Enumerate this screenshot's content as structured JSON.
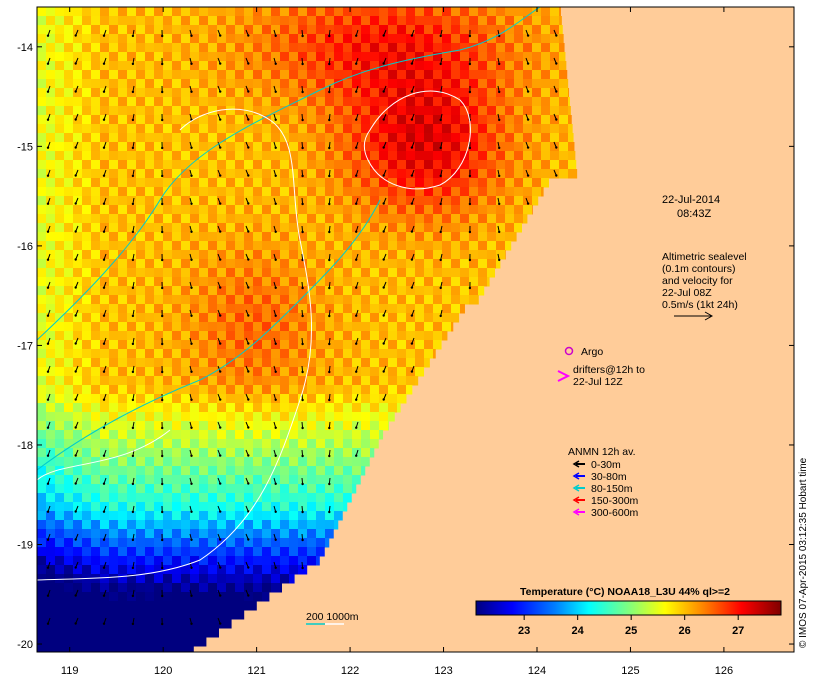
{
  "map": {
    "lon_ticks": [
      "119",
      "120",
      "121",
      "122",
      "123",
      "124",
      "125",
      "126"
    ],
    "lat_ticks": [
      "-14",
      "-15",
      "-16",
      "-17",
      "-18",
      "-19",
      "-20"
    ],
    "lon_range": [
      118.65,
      126.75
    ],
    "lat_range": [
      -20.08,
      -13.6
    ]
  },
  "timestamp": {
    "date": "22-Jul-2014",
    "time": "08:43Z"
  },
  "altimetry": {
    "lines": [
      "Altimetric sealevel",
      "(0.1m contours)",
      "and velocity for",
      "22-Jul 08Z",
      "0.5m/s (1kt 24h)"
    ]
  },
  "argo": {
    "label": "Argo",
    "color": "#cc00cc"
  },
  "drifters": {
    "lines": [
      "drifters@12h to",
      "22-Jul 12Z"
    ],
    "color": "#ff00ff"
  },
  "anmn": {
    "title": "ANMN 12h av.",
    "items": [
      {
        "label": "0-30m",
        "color": "#000000"
      },
      {
        "label": "30-80m",
        "color": "#0000ff"
      },
      {
        "label": "80-150m",
        "color": "#00cccc"
      },
      {
        "label": "150-300m",
        "color": "#ff0000"
      },
      {
        "label": "300-600m",
        "color": "#ff00ff"
      }
    ]
  },
  "colorbar": {
    "title": "Temperature (°C) NOAA18_L3U 44% ql>=2",
    "ticks": [
      "23",
      "24",
      "25",
      "26",
      "27"
    ],
    "range": [
      22.1,
      27.8
    ]
  },
  "isobath": {
    "label": "200  1000m",
    "colors": [
      "#00cccc",
      "#ffffff"
    ]
  },
  "credit": "© IMOS 07-Apr-2015 03:12:35 Hobart time",
  "colors": {
    "land": "#ffcc99",
    "frame": "#000000"
  }
}
